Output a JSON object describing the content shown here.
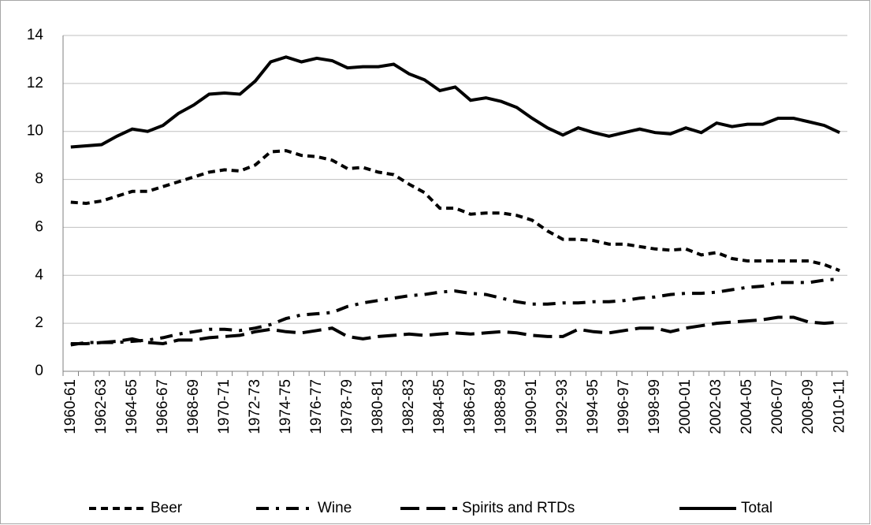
{
  "chart_data": {
    "type": "line",
    "categories": [
      "1960-61",
      null,
      "1962-63",
      null,
      "1964-65",
      null,
      "1966-67",
      null,
      "1968-69",
      null,
      "1970-71",
      null,
      "1972-73",
      null,
      "1974-75",
      null,
      "1976-77",
      null,
      "1978-79",
      null,
      "1980-81",
      null,
      "1982-83",
      null,
      "1984-85",
      null,
      "1986-87",
      null,
      "1988-89",
      null,
      "1990-91",
      null,
      "1992-93",
      null,
      "1994-95",
      null,
      "1996-97",
      null,
      "1998-99",
      null,
      "2000-01",
      null,
      "2002-03",
      null,
      "2004-05",
      null,
      "2006-07",
      null,
      "2008-09",
      null,
      "2010-11"
    ],
    "series": [
      {
        "name": "Beer",
        "color": "#000000",
        "style": "dash",
        "values": [
          7.05,
          7.0,
          7.1,
          7.3,
          7.5,
          7.5,
          7.7,
          7.9,
          8.1,
          8.3,
          8.4,
          8.35,
          8.6,
          9.15,
          9.2,
          9.0,
          8.95,
          8.8,
          8.45,
          8.5,
          8.3,
          8.2,
          7.8,
          7.45,
          6.8,
          6.8,
          6.55,
          6.6,
          6.6,
          6.5,
          6.3,
          5.85,
          5.5,
          5.5,
          5.45,
          5.3,
          5.3,
          5.2,
          5.1,
          5.05,
          5.1,
          4.85,
          4.95,
          4.7,
          4.6,
          4.6,
          4.6,
          4.6,
          4.6,
          4.45,
          4.2
        ]
      },
      {
        "name": "Wine",
        "color": "#000000",
        "style": "dash-dot",
        "values": [
          1.1,
          1.2,
          1.2,
          1.2,
          1.25,
          1.3,
          1.4,
          1.55,
          1.65,
          1.75,
          1.75,
          1.7,
          1.8,
          1.95,
          2.2,
          2.35,
          2.4,
          2.45,
          2.7,
          2.85,
          2.95,
          3.05,
          3.15,
          3.2,
          3.3,
          3.35,
          3.25,
          3.2,
          3.05,
          2.9,
          2.8,
          2.8,
          2.85,
          2.85,
          2.9,
          2.9,
          2.95,
          3.05,
          3.1,
          3.2,
          3.25,
          3.25,
          3.3,
          3.4,
          3.5,
          3.55,
          3.7,
          3.7,
          3.7,
          3.8,
          3.85
        ]
      },
      {
        "name": "Spirits and RTDs",
        "color": "#000000",
        "style": "long-dash",
        "values": [
          1.15,
          1.15,
          1.2,
          1.25,
          1.35,
          1.2,
          1.15,
          1.3,
          1.3,
          1.4,
          1.45,
          1.5,
          1.65,
          1.75,
          1.65,
          1.6,
          1.7,
          1.8,
          1.45,
          1.35,
          1.45,
          1.5,
          1.55,
          1.5,
          1.55,
          1.6,
          1.55,
          1.6,
          1.65,
          1.6,
          1.5,
          1.45,
          1.45,
          1.75,
          1.65,
          1.6,
          1.7,
          1.8,
          1.8,
          1.65,
          1.8,
          1.9,
          2.0,
          2.05,
          2.1,
          2.15,
          2.25,
          2.25,
          2.05,
          2.0,
          2.05
        ]
      },
      {
        "name": "Total",
        "color": "#000000",
        "style": "solid",
        "values": [
          9.35,
          9.4,
          9.45,
          9.8,
          10.1,
          10.0,
          10.25,
          10.75,
          11.1,
          11.55,
          11.6,
          11.55,
          12.1,
          12.9,
          13.1,
          12.9,
          13.05,
          12.95,
          12.65,
          12.7,
          12.7,
          12.8,
          12.4,
          12.15,
          11.7,
          11.85,
          11.3,
          11.4,
          11.25,
          11.0,
          10.55,
          10.15,
          9.85,
          10.15,
          9.95,
          9.8,
          9.95,
          10.1,
          9.95,
          9.9,
          10.15,
          9.95,
          10.35,
          10.2,
          10.3,
          10.3,
          10.55,
          10.55,
          10.4,
          10.25,
          9.95
        ]
      }
    ],
    "ylim": [
      0,
      14
    ],
    "yticks": [
      0,
      2,
      4,
      6,
      8,
      10,
      12,
      14
    ],
    "grid": true,
    "legend": "bottom"
  }
}
